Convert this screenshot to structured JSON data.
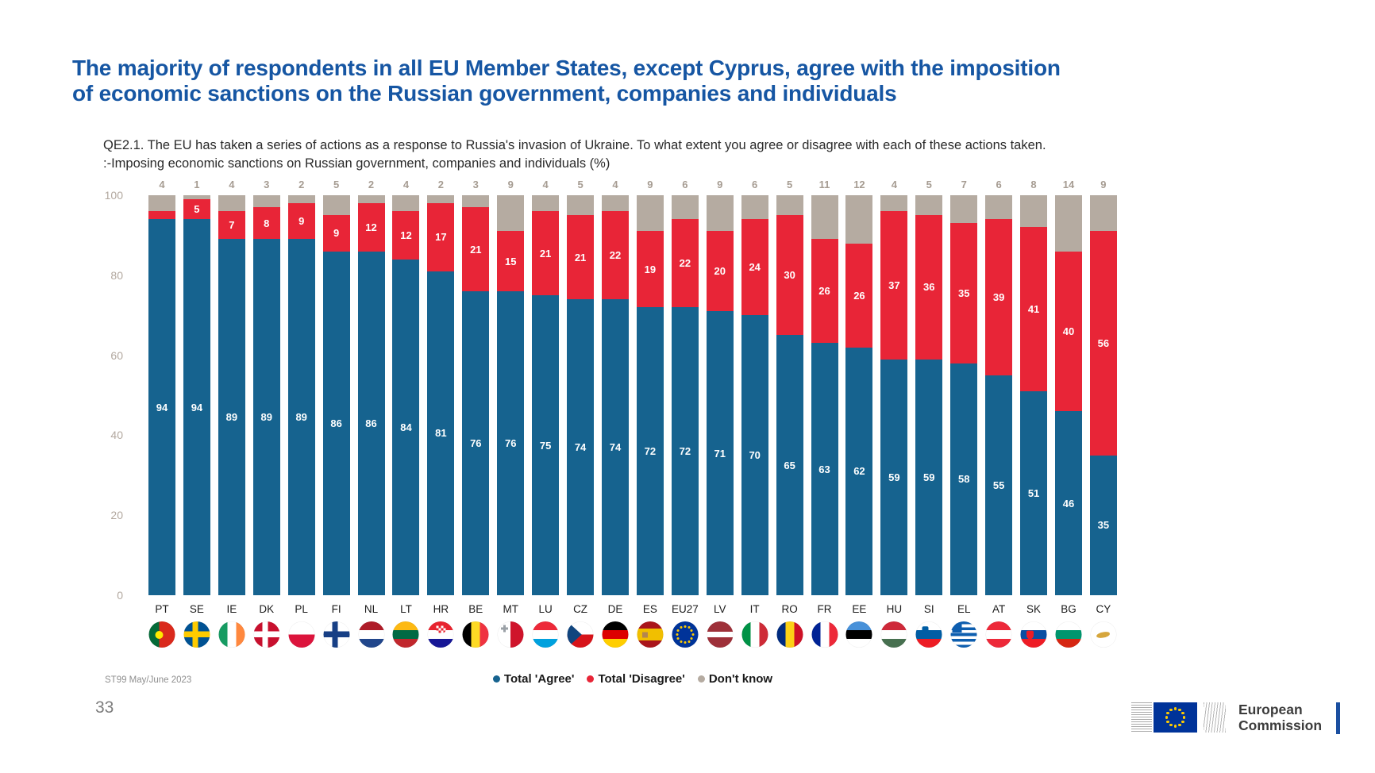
{
  "page": {
    "title_lines": [
      "The majority of respondents in all EU Member States, except Cyprus, agree with the imposition",
      "of economic sanctions on the Russian government, companies and individuals"
    ],
    "source": "ST99 May/June 2023",
    "page_number": "33",
    "logo": {
      "line1": "European",
      "line2": "Commission"
    }
  },
  "chart_data": {
    "type": "bar",
    "stacked": true,
    "subtitle_line1": "QE2.1. The EU has taken a series of actions as a response to Russia's invasion of Ukraine. To what extent you agree or disagree with each of these actions taken.",
    "subtitle_line2": ":-Imposing economic sanctions on Russian government, companies and individuals (%)",
    "categories": [
      "PT",
      "SE",
      "IE",
      "DK",
      "PL",
      "FI",
      "NL",
      "LT",
      "HR",
      "BE",
      "MT",
      "LU",
      "CZ",
      "DE",
      "ES",
      "EU27",
      "LV",
      "IT",
      "RO",
      "FR",
      "EE",
      "HU",
      "SI",
      "EL",
      "AT",
      "SK",
      "BG",
      "CY"
    ],
    "series": [
      {
        "name": "Total 'Agree'",
        "color": "#16638f",
        "values": [
          94,
          94,
          89,
          89,
          89,
          86,
          86,
          84,
          81,
          76,
          76,
          75,
          74,
          74,
          72,
          72,
          71,
          70,
          65,
          63,
          62,
          59,
          59,
          58,
          55,
          51,
          46,
          35
        ]
      },
      {
        "name": "Total 'Disagree'",
        "color": "#e82537",
        "values": [
          2,
          5,
          7,
          8,
          9,
          9,
          12,
          12,
          17,
          21,
          15,
          21,
          21,
          22,
          19,
          22,
          20,
          24,
          30,
          26,
          26,
          37,
          36,
          35,
          39,
          41,
          40,
          56
        ]
      },
      {
        "name": "Don't know",
        "color": "#b5aba1",
        "values": [
          4,
          1,
          4,
          3,
          2,
          5,
          2,
          4,
          2,
          3,
          9,
          4,
          5,
          4,
          9,
          6,
          9,
          6,
          5,
          11,
          12,
          4,
          5,
          7,
          6,
          8,
          14,
          9
        ]
      }
    ],
    "ylim": [
      0,
      100
    ],
    "yticks": [
      0,
      20,
      40,
      60,
      80,
      100
    ],
    "grid": false,
    "legend_position": "bottom",
    "min_label_value": 5
  },
  "flags": [
    {
      "t": "v",
      "c": [
        "#046a38",
        "#da291c"
      ],
      "w": [
        0.4,
        0.6
      ],
      "e": {
        "type": "dot",
        "color": "#ffe900",
        "x": "38%",
        "y": "50%",
        "s": 10
      }
    },
    {
      "t": "cross",
      "bg": "#005293",
      "cc": "#fecb00"
    },
    {
      "t": "v",
      "c": [
        "#169b62",
        "#ffffff",
        "#ff883e"
      ]
    },
    {
      "t": "cross",
      "bg": "#c8102e",
      "cc": "#ffffff"
    },
    {
      "t": "h",
      "c": [
        "#ffffff",
        "#dc143c"
      ]
    },
    {
      "t": "cross",
      "bg": "#ffffff",
      "cc": "#173f85"
    },
    {
      "t": "h",
      "c": [
        "#ae1c28",
        "#ffffff",
        "#21468b"
      ]
    },
    {
      "t": "h",
      "c": [
        "#fdb913",
        "#006a44",
        "#c1272d"
      ]
    },
    {
      "t": "h",
      "c": [
        "#e8242f",
        "#ffffff",
        "#171796"
      ],
      "e": {
        "type": "checker",
        "x": "50%",
        "y": "30%"
      }
    },
    {
      "t": "v",
      "c": [
        "#000000",
        "#fdda24",
        "#ef3340"
      ]
    },
    {
      "t": "v",
      "c": [
        "#ffffff",
        "#cf142b"
      ],
      "e": {
        "type": "cross",
        "color": "#9aa0a6",
        "x": "26%",
        "y": "26%",
        "s": 9
      }
    },
    {
      "t": "h",
      "c": [
        "#ed2939",
        "#ffffff",
        "#00a1de"
      ]
    },
    {
      "t": "h",
      "c": [
        "#ffffff",
        "#d7141a"
      ],
      "e": {
        "type": "tri",
        "color": "#11457e"
      }
    },
    {
      "t": "h",
      "c": [
        "#000000",
        "#dd0000",
        "#ffce00"
      ]
    },
    {
      "t": "h",
      "c": [
        "#aa151b",
        "#f1bf00",
        "#aa151b"
      ],
      "w": [
        0.28,
        0.44,
        0.28
      ],
      "e": {
        "type": "rect",
        "color": "#b3854f",
        "x": "32%",
        "y": "50%",
        "s": 7
      }
    },
    {
      "t": "solid",
      "bg": "#003399",
      "e": {
        "type": "stars",
        "color": "#ffcc00"
      }
    },
    {
      "t": "h",
      "c": [
        "#9e3039",
        "#ffffff",
        "#9e3039"
      ],
      "w": [
        0.4,
        0.2,
        0.4
      ]
    },
    {
      "t": "v",
      "c": [
        "#009246",
        "#ffffff",
        "#ce2b37"
      ]
    },
    {
      "t": "v",
      "c": [
        "#002b7f",
        "#fcd116",
        "#ce1126"
      ]
    },
    {
      "t": "v",
      "c": [
        "#002395",
        "#ffffff",
        "#ed2939"
      ]
    },
    {
      "t": "h",
      "c": [
        "#4891d9",
        "#000000",
        "#ffffff"
      ]
    },
    {
      "t": "h",
      "c": [
        "#ce2939",
        "#ffffff",
        "#477050"
      ]
    },
    {
      "t": "h",
      "c": [
        "#ffffff",
        "#005da4",
        "#ed1c24"
      ],
      "e": {
        "type": "shield",
        "color": "#005da4",
        "x": "36%",
        "y": "34%",
        "s": 8
      }
    },
    {
      "t": "h",
      "c": [
        "#0d5eaf",
        "#ffffff",
        "#0d5eaf",
        "#ffffff",
        "#0d5eaf",
        "#ffffff",
        "#0d5eaf",
        "#ffffff",
        "#0d5eaf"
      ],
      "e": {
        "type": "rect",
        "color": "#0d5eaf",
        "x": "24%",
        "y": "24%",
        "s": 12
      }
    },
    {
      "t": "h",
      "c": [
        "#ed2939",
        "#ffffff",
        "#ed2939"
      ]
    },
    {
      "t": "h",
      "c": [
        "#ffffff",
        "#0b4ea2",
        "#ee1c25"
      ],
      "e": {
        "type": "shield",
        "color": "#ee1c25",
        "x": "36%",
        "y": "52%",
        "s": 9
      }
    },
    {
      "t": "h",
      "c": [
        "#ffffff",
        "#00966e",
        "#d62612"
      ]
    },
    {
      "t": "solid",
      "bg": "#ffffff",
      "e": {
        "type": "cyprus",
        "color": "#d6a63c"
      }
    }
  ]
}
